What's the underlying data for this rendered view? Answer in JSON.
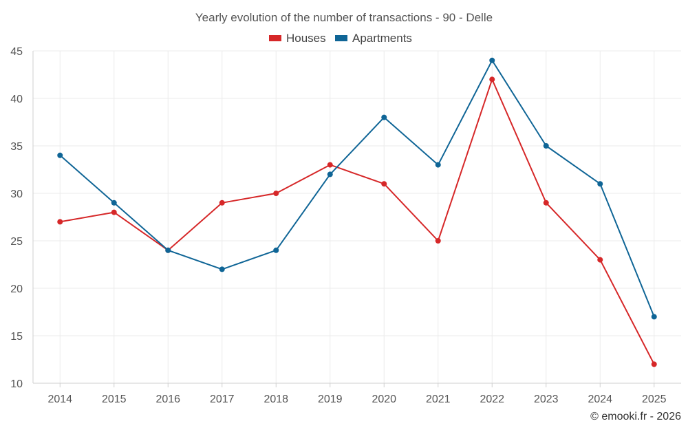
{
  "chart_data": {
    "type": "line",
    "title": "Yearly evolution of the number of transactions - 90 - Delle",
    "categories": [
      "2014",
      "2015",
      "2016",
      "2017",
      "2018",
      "2019",
      "2020",
      "2021",
      "2022",
      "2023",
      "2024",
      "2025"
    ],
    "series": [
      {
        "name": "Houses",
        "color": "#d62728",
        "values": [
          27,
          28,
          24,
          29,
          30,
          33,
          31,
          25,
          42,
          29,
          23,
          12
        ]
      },
      {
        "name": "Apartments",
        "color": "#0f6596",
        "values": [
          34,
          29,
          24,
          22,
          24,
          32,
          38,
          33,
          44,
          35,
          31,
          17
        ]
      }
    ],
    "ylim": [
      10,
      45
    ],
    "yticks": [
      10,
      15,
      20,
      25,
      30,
      35,
      40,
      45
    ],
    "legend_position": "top-center",
    "grid": true,
    "credit": "© emooki.fr - 2026"
  }
}
